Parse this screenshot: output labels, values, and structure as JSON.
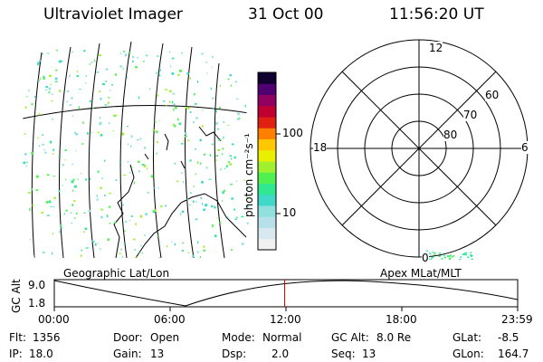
{
  "header": {
    "instrument": "Ultraviolet Imager",
    "date": "31 Oct 00",
    "time": "11:56:20 UT"
  },
  "colorbar": {
    "unit_label": "photon cm⁻²s⁻¹",
    "ticks": [
      {
        "label": "100",
        "value": 100
      },
      {
        "label": "10",
        "value": 10
      }
    ],
    "colors": [
      "#f0f0f0",
      "#d8e8f0",
      "#b8e0ea",
      "#90e0e0",
      "#40d8c8",
      "#30e890",
      "#50f050",
      "#a0f030",
      "#e8f000",
      "#ffc800",
      "#ff8000",
      "#e02010",
      "#c00030",
      "#900060",
      "#500070",
      "#100030"
    ]
  },
  "left_map": {
    "label": "Geographic Lat/Lon"
  },
  "polar_plot": {
    "label": "Apex MLat/MLT",
    "mlt_labels": {
      "top": "12",
      "left": "18",
      "right": "6",
      "bottom": "0"
    },
    "lat_labels": [
      "60",
      "70",
      "80"
    ]
  },
  "timeline": {
    "ylabel": "GC Alt",
    "ytick_top": "9.0",
    "ytick_bottom": "1.8",
    "xticks": [
      "00:00",
      "06:00",
      "12:00",
      "18:00",
      "23:59"
    ],
    "current_time_fraction": 0.497
  },
  "info": {
    "flt_label": "Flt:",
    "flt_value": "1356",
    "ip_label": "IP:",
    "ip_value": "18.0",
    "door_label": "Door:",
    "door_value": "Open",
    "gain_label": "Gain:",
    "gain_value": "13",
    "mode_label": "Mode:",
    "mode_value": "Normal",
    "dsp_label": "Dsp:",
    "dsp_value": "2.0",
    "gcalt_label": "GC Alt:",
    "gcalt_value": "8.0 Re",
    "seq_label": "Seq:",
    "seq_value": "13",
    "glat_label": "GLat:",
    "glat_value": "-8.5",
    "glon_label": "GLon:",
    "glon_value": "164.7"
  }
}
